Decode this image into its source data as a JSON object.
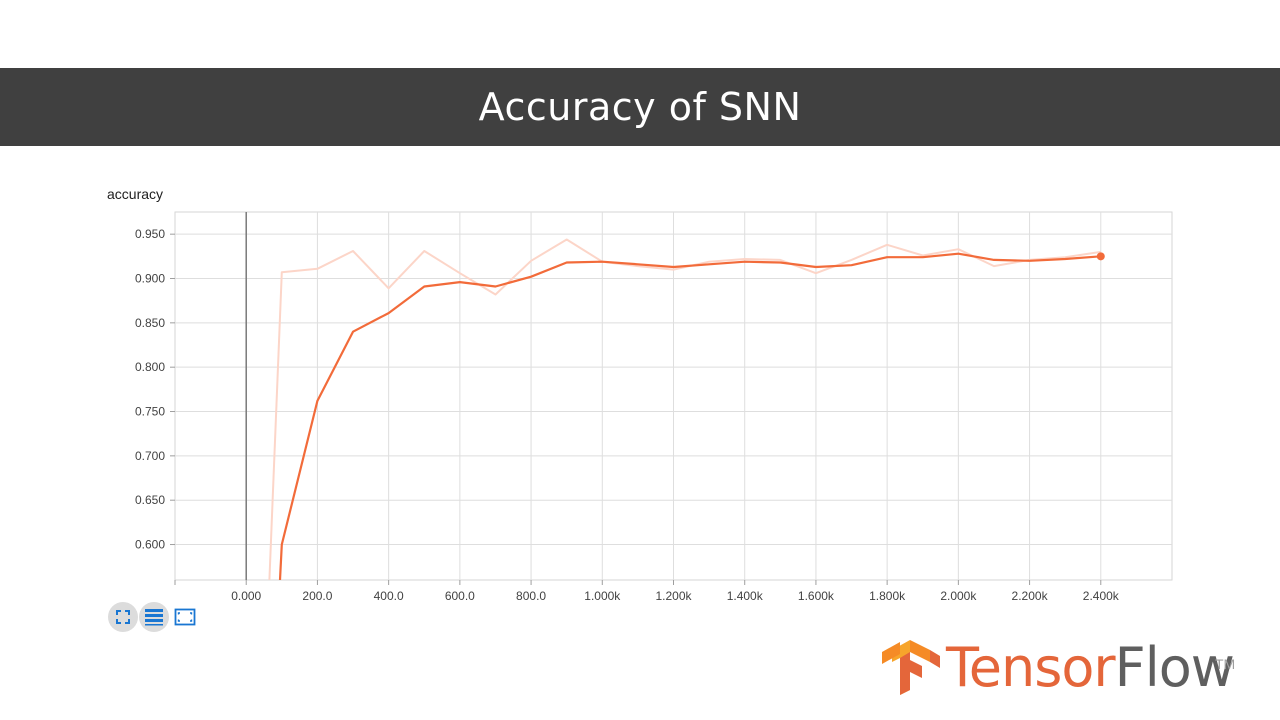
{
  "slide": {
    "title": "Accuracy of SNN"
  },
  "chart_data": {
    "type": "line",
    "title": "accuracy",
    "xlabel": "",
    "ylabel": "",
    "xlim": [
      -200,
      2600
    ],
    "ylim": [
      0.56,
      0.975
    ],
    "grid": true,
    "x_ticks": [
      0,
      200,
      400,
      600,
      800,
      1000,
      1200,
      1400,
      1600,
      1800,
      2000,
      2200,
      2400
    ],
    "x_tick_labels": [
      "0.000",
      "200.0",
      "400.0",
      "600.0",
      "800.0",
      "1.000k",
      "1.200k",
      "1.400k",
      "1.600k",
      "1.800k",
      "2.000k",
      "2.200k",
      "2.400k"
    ],
    "y_ticks": [
      0.6,
      0.65,
      0.7,
      0.75,
      0.8,
      0.85,
      0.9,
      0.95
    ],
    "y_tick_labels": [
      "0.600",
      "0.650",
      "0.700",
      "0.750",
      "0.800",
      "0.850",
      "0.900",
      "0.950"
    ],
    "series": [
      {
        "name": "",
        "role": "raw",
        "color": "#fcd5c8",
        "x": [
          65,
          100,
          200,
          300,
          400,
          500,
          600,
          700,
          800,
          900,
          1000,
          1100,
          1200,
          1300,
          1400,
          1500,
          1600,
          1700,
          1800,
          1900,
          2000,
          2100,
          2200,
          2300,
          2400
        ],
        "y": [
          0.56,
          0.907,
          0.911,
          0.931,
          0.889,
          0.931,
          0.906,
          0.882,
          0.92,
          0.944,
          0.919,
          0.914,
          0.91,
          0.919,
          0.922,
          0.921,
          0.906,
          0.921,
          0.938,
          0.926,
          0.933,
          0.914,
          0.921,
          0.924,
          0.93
        ]
      },
      {
        "name": "",
        "role": "smoothed",
        "color": "#f26b3a",
        "x": [
          95,
          100,
          200,
          300,
          400,
          500,
          600,
          700,
          800,
          900,
          1000,
          1100,
          1200,
          1300,
          1400,
          1500,
          1600,
          1700,
          1800,
          1900,
          2000,
          2100,
          2200,
          2300,
          2400
        ],
        "y": [
          0.56,
          0.6,
          0.762,
          0.84,
          0.861,
          0.891,
          0.896,
          0.891,
          0.902,
          0.918,
          0.919,
          0.916,
          0.913,
          0.916,
          0.919,
          0.918,
          0.913,
          0.915,
          0.924,
          0.924,
          0.928,
          0.921,
          0.92,
          0.922,
          0.925
        ]
      }
    ]
  },
  "toolbar": {
    "buttons": [
      {
        "icon": "expand-icon",
        "active": true
      },
      {
        "icon": "list-icon",
        "active": true
      },
      {
        "icon": "fit-domain-icon",
        "active": false
      }
    ]
  },
  "logo": {
    "word_a": "Tensor",
    "word_b": "Flow",
    "tm": "TM",
    "colors": {
      "orange": "#e4663a",
      "gray": "#5f5f5f"
    }
  }
}
